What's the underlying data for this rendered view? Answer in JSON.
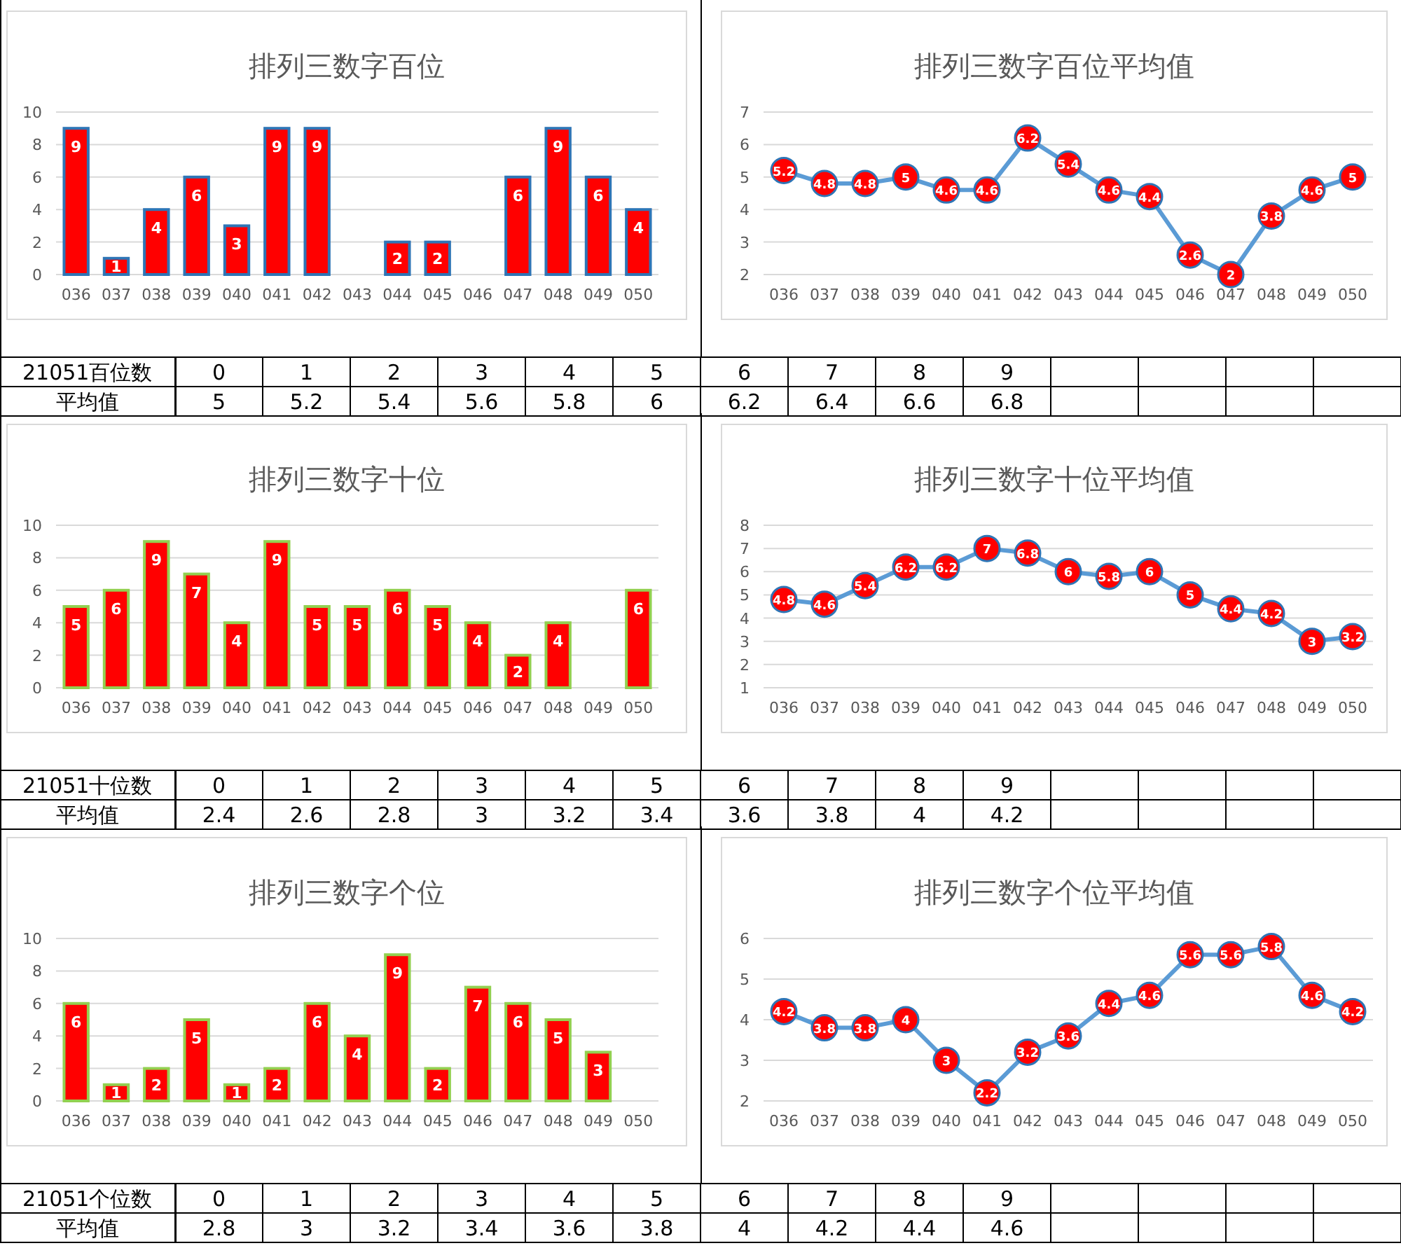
{
  "chart_data": [
    {
      "type": "bar",
      "title": "排列三数字百位",
      "categories": [
        "036",
        "037",
        "038",
        "039",
        "040",
        "041",
        "042",
        "043",
        "044",
        "045",
        "046",
        "047",
        "048",
        "049",
        "050"
      ],
      "series": [
        {
          "color": "#ff0000",
          "values": [
            9,
            1,
            4,
            6,
            3,
            9,
            9,
            0,
            2,
            2,
            0,
            6,
            9,
            6,
            4
          ]
        }
      ],
      "value_labels": [
        "9",
        "1",
        "4",
        "6",
        "3",
        "9",
        "9",
        null,
        "2",
        "2",
        null,
        "6",
        "9",
        "6",
        "4"
      ],
      "ylim": [
        0,
        10
      ],
      "yticks": [
        0,
        2,
        4,
        6,
        8,
        10
      ],
      "grid": "y"
    },
    {
      "type": "line",
      "title": "排列三数字百位平均值",
      "categories": [
        "036",
        "037",
        "038",
        "039",
        "040",
        "041",
        "042",
        "043",
        "044",
        "045",
        "046",
        "047",
        "048",
        "049",
        "050"
      ],
      "series": [
        {
          "color": "#5b9bd5",
          "values": [
            5.2,
            4.8,
            4.8,
            5,
            4.6,
            4.6,
            6.2,
            5.4,
            4.6,
            4.4,
            2.6,
            2,
            3.8,
            4.6,
            5
          ]
        }
      ],
      "data_labels": true,
      "marker": "circle",
      "ylim": [
        2,
        7
      ],
      "yticks": [
        2,
        3,
        4,
        5,
        6,
        7
      ],
      "grid": "y"
    },
    {
      "type": "heatmap",
      "title": "21051百位数",
      "y_categories": [
        "平均值"
      ],
      "categories": [
        "0",
        "1",
        "2",
        "3",
        "4",
        "5",
        "6",
        "7",
        "8",
        "9"
      ],
      "cells": [
        [
          5,
          5.2,
          5.4,
          5.6,
          5.8,
          6,
          6.2,
          6.4,
          6.6,
          6.8
        ]
      ],
      "data_labels": true
    },
    {
      "type": "bar",
      "title": "排列三数字十位",
      "categories": [
        "036",
        "037",
        "038",
        "039",
        "040",
        "041",
        "042",
        "043",
        "044",
        "045",
        "046",
        "047",
        "048",
        "049",
        "050"
      ],
      "series": [
        {
          "color": "#ff0000",
          "values": [
            5,
            6,
            9,
            7,
            4,
            9,
            5,
            5,
            6,
            5,
            4,
            2,
            4,
            0,
            6
          ]
        }
      ],
      "value_labels": [
        "5",
        "6",
        "9",
        "7",
        "4",
        "9",
        "5",
        "5",
        "6",
        "5",
        "4",
        "2",
        "4",
        null,
        "6"
      ],
      "ylim": [
        0,
        10
      ],
      "yticks": [
        0,
        2,
        4,
        6,
        8,
        10
      ],
      "grid": "y"
    },
    {
      "type": "line",
      "title": "排列三数字十位平均值",
      "categories": [
        "036",
        "037",
        "038",
        "039",
        "040",
        "041",
        "042",
        "043",
        "044",
        "045",
        "046",
        "047",
        "048",
        "049",
        "050"
      ],
      "series": [
        {
          "color": "#5b9bd5",
          "values": [
            4.8,
            4.6,
            5.4,
            6.2,
            6.2,
            7,
            6.8,
            6,
            5.8,
            6,
            5,
            4.4,
            4.2,
            3,
            3.2
          ]
        }
      ],
      "data_labels": true,
      "marker": "circle",
      "ylim": [
        1,
        8
      ],
      "yticks": [
        1,
        2,
        3,
        4,
        5,
        6,
        7,
        8
      ],
      "grid": "y"
    },
    {
      "type": "heatmap",
      "title": "21051十位数",
      "y_categories": [
        "平均值"
      ],
      "categories": [
        "0",
        "1",
        "2",
        "3",
        "4",
        "5",
        "6",
        "7",
        "8",
        "9"
      ],
      "cells": [
        [
          2.4,
          2.6,
          2.8,
          3,
          3.2,
          3.4,
          3.6,
          3.8,
          4,
          4.2
        ]
      ],
      "data_labels": true
    },
    {
      "type": "bar",
      "title": "排列三数字个位",
      "categories": [
        "036",
        "037",
        "038",
        "039",
        "040",
        "041",
        "042",
        "043",
        "044",
        "045",
        "046",
        "047",
        "048",
        "049",
        "050"
      ],
      "series": [
        {
          "color": "#ff0000",
          "values": [
            6,
            1,
            2,
            5,
            1,
            2,
            6,
            4,
            9,
            2,
            7,
            6,
            5,
            3,
            0
          ]
        }
      ],
      "value_labels": [
        "6",
        "1",
        "2",
        "5",
        "1",
        "2",
        "6",
        "4",
        "9",
        "2",
        "7",
        "6",
        "5",
        "3",
        null
      ],
      "ylim": [
        0,
        10
      ],
      "yticks": [
        0,
        2,
        4,
        6,
        8,
        10
      ],
      "grid": "y"
    },
    {
      "type": "line",
      "title": "排列三数字个位平均值",
      "categories": [
        "036",
        "037",
        "038",
        "039",
        "040",
        "041",
        "042",
        "043",
        "044",
        "045",
        "046",
        "047",
        "048",
        "049",
        "050"
      ],
      "series": [
        {
          "color": "#5b9bd5",
          "values": [
            4.2,
            3.8,
            3.8,
            4,
            3,
            2.2,
            3.2,
            3.6,
            4.4,
            4.6,
            5.6,
            5.6,
            5.8,
            4.6,
            4.2
          ]
        }
      ],
      "data_labels": true,
      "marker": "circle",
      "ylim": [
        2,
        6
      ],
      "yticks": [
        2,
        3,
        4,
        5,
        6
      ],
      "grid": "y"
    },
    {
      "type": "heatmap",
      "title": "21051个位数",
      "y_categories": [
        "平均值"
      ],
      "categories": [
        "0",
        "1",
        "2",
        "3",
        "4",
        "5",
        "6",
        "7",
        "8",
        "9"
      ],
      "cells": [
        [
          2.8,
          3,
          3.2,
          3.4,
          3.6,
          3.8,
          4,
          4.2,
          4.4,
          4.6
        ]
      ],
      "data_labels": true
    }
  ]
}
